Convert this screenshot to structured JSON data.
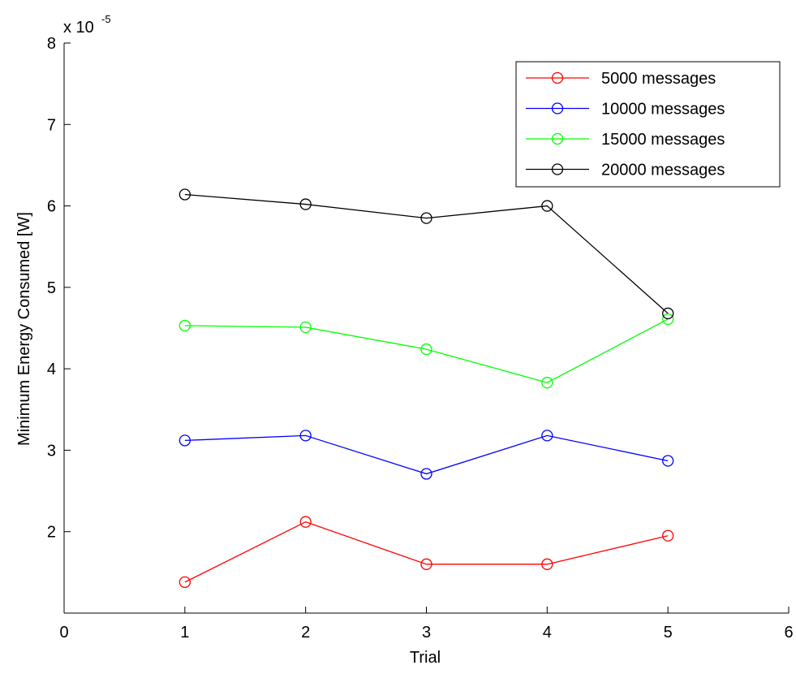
{
  "chart_data": {
    "type": "line",
    "xlabel": "Trial",
    "ylabel": "Minimum Energy Consumed [W]",
    "xlim": [
      0,
      6
    ],
    "ylim": [
      1,
      8
    ],
    "xticks": [
      "0",
      "1",
      "2",
      "3",
      "4",
      "5",
      "6"
    ],
    "yticks": [
      "2",
      "3",
      "4",
      "5",
      "6",
      "7",
      "8"
    ],
    "y_exponent": {
      "base": "x 10",
      "power": "-5"
    },
    "grid": false,
    "legend_position": "top-right",
    "x": [
      1,
      2,
      3,
      4,
      5
    ],
    "series": [
      {
        "name": "5000 messages",
        "color": "#ff0000",
        "marker": "circle",
        "values": [
          1.38,
          2.12,
          1.6,
          1.6,
          1.95
        ]
      },
      {
        "name": "10000 messages",
        "color": "#0000ff",
        "marker": "circle",
        "values": [
          3.12,
          3.18,
          2.71,
          3.18,
          2.87
        ]
      },
      {
        "name": "15000 messages",
        "color": "#00ff00",
        "marker": "circle",
        "values": [
          4.53,
          4.51,
          4.24,
          3.83,
          4.61
        ]
      },
      {
        "name": "20000 messages",
        "color": "#000000",
        "marker": "circle",
        "values": [
          6.14,
          6.02,
          5.85,
          6.0,
          4.68
        ]
      }
    ]
  }
}
